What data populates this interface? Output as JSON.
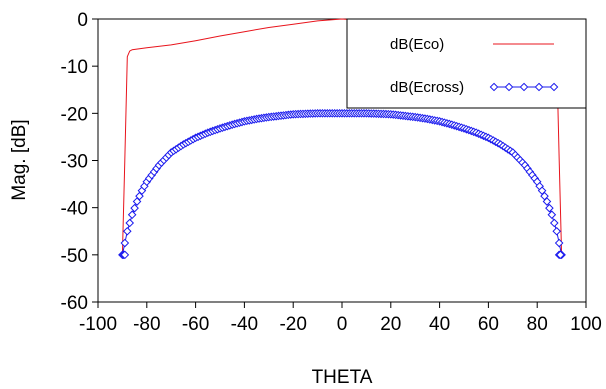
{
  "chart_data": {
    "type": "line",
    "title": "",
    "xlabel": "THETA",
    "ylabel": "Mag. [dB]",
    "xlim": [
      -100,
      100
    ],
    "ylim": [
      -60,
      0
    ],
    "x_ticks": [
      "-100",
      "-80",
      "-60",
      "-40",
      "-20",
      "0",
      "20",
      "40",
      "60",
      "80",
      "100"
    ],
    "y_ticks": [
      "0",
      "-10",
      "-20",
      "-30",
      "-40",
      "-50",
      "-60"
    ],
    "legend_position": "top-right",
    "series": [
      {
        "name": "dB(Eco)",
        "color": "#e8141c",
        "marker": "none",
        "x": [
          -90,
          -89,
          -88,
          -87,
          -86,
          -80,
          -70,
          -60,
          -50,
          -40,
          -30,
          -20,
          -10,
          0,
          10,
          20,
          30,
          40,
          50,
          60,
          70,
          80,
          86,
          87,
          88,
          89,
          90
        ],
        "y": [
          -50,
          -30,
          -8,
          -6.8,
          -6.5,
          -6.1,
          -5.5,
          -4.6,
          -3.6,
          -2.7,
          -1.8,
          -1.1,
          -0.4,
          0,
          -0.4,
          -1.1,
          -1.8,
          -2.7,
          -3.6,
          -4.6,
          -5.5,
          -6.1,
          -6.5,
          -6.8,
          -8,
          -30,
          -50
        ]
      },
      {
        "name": "dB(Ecross)",
        "color": "#1a1aee",
        "marker": "diamond",
        "x": [
          -90,
          -88,
          -86,
          -84,
          -82,
          -80,
          -75,
          -70,
          -65,
          -60,
          -55,
          -50,
          -45,
          -40,
          -35,
          -30,
          -25,
          -20,
          -15,
          -10,
          -5,
          0,
          5,
          10,
          15,
          20,
          25,
          30,
          35,
          40,
          45,
          50,
          55,
          60,
          65,
          70,
          75,
          80,
          82,
          84,
          86,
          88,
          90
        ],
        "y": [
          -50,
          -45,
          -41.5,
          -38.7,
          -36.4,
          -34.5,
          -31,
          -28.3,
          -26.6,
          -25.2,
          -24.1,
          -23.2,
          -22.4,
          -21.7,
          -21.2,
          -20.8,
          -20.5,
          -20.2,
          -20.1,
          -20,
          -20,
          -20,
          -20,
          -20,
          -20.1,
          -20.2,
          -20.5,
          -20.8,
          -21.2,
          -21.7,
          -22.4,
          -23.2,
          -24.1,
          -25.2,
          -26.6,
          -28.3,
          -31,
          -34.5,
          -36.4,
          -38.7,
          -41.5,
          -45,
          -50
        ]
      }
    ]
  }
}
